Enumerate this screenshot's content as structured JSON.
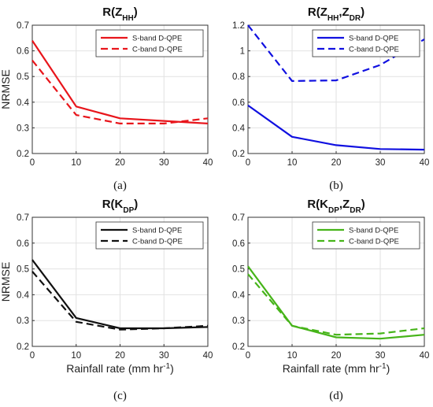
{
  "chart_data": [
    {
      "id": "a",
      "type": "line",
      "title_parts": [
        {
          "t": "R(Z"
        },
        {
          "t": "HH",
          "sub": true
        },
        {
          "t": ")"
        }
      ],
      "panel_label": "(a)",
      "ylabel": "NRMSE",
      "xlabel": "",
      "x": [
        0,
        10,
        20,
        30,
        40
      ],
      "xlim": [
        0,
        40
      ],
      "ylim": [
        0.2,
        0.7
      ],
      "xticks": [
        "0",
        "10",
        "20",
        "30",
        "40"
      ],
      "yticks": [
        "0.2",
        "0.3",
        "0.4",
        "0.5",
        "0.6",
        "0.7"
      ],
      "grid": true,
      "legend_position": "top-right",
      "series": [
        {
          "name": "S-band D-QPE",
          "color": "#e8151b",
          "dash": "solid",
          "values": [
            0.64,
            0.383,
            0.337,
            0.327,
            0.317
          ]
        },
        {
          "name": "C-band D-QPE",
          "color": "#e8151b",
          "dash": "dashed",
          "values": [
            0.563,
            0.35,
            0.317,
            0.317,
            0.337
          ]
        }
      ]
    },
    {
      "id": "b",
      "type": "line",
      "title_parts": [
        {
          "t": "R(Z"
        },
        {
          "t": "HH",
          "sub": true
        },
        {
          "t": ",Z"
        },
        {
          "t": "DR",
          "sub": true
        },
        {
          "t": ")"
        }
      ],
      "panel_label": "(b)",
      "ylabel": "",
      "xlabel": "",
      "x": [
        0,
        10,
        20,
        30,
        40
      ],
      "xlim": [
        0,
        40
      ],
      "ylim": [
        0.2,
        1.2
      ],
      "xticks": [
        "0",
        "10",
        "20",
        "30",
        "40"
      ],
      "yticks": [
        "0.2",
        "0.4",
        "0.6",
        "0.8",
        "1",
        "1.2"
      ],
      "grid": true,
      "legend_position": "top-right",
      "series": [
        {
          "name": "S-band D-QPE",
          "color": "#1010e0",
          "dash": "solid",
          "values": [
            0.575,
            0.33,
            0.265,
            0.235,
            0.23
          ]
        },
        {
          "name": "C-band D-QPE",
          "color": "#1010e0",
          "dash": "dashed",
          "values": [
            1.2,
            0.765,
            0.77,
            0.89,
            1.09
          ]
        }
      ]
    },
    {
      "id": "c",
      "type": "line",
      "title_parts": [
        {
          "t": "R(K"
        },
        {
          "t": "DP",
          "sub": true
        },
        {
          "t": ")"
        }
      ],
      "panel_label": "(c)",
      "ylabel": "NRMSE",
      "xlabel_parts": [
        {
          "t": "Rainfall rate (mm hr"
        },
        {
          "t": "-1",
          "sup": true
        },
        {
          "t": ")"
        }
      ],
      "x": [
        0,
        10,
        20,
        30,
        40
      ],
      "xlim": [
        0,
        40
      ],
      "ylim": [
        0.2,
        0.7
      ],
      "xticks": [
        "0",
        "10",
        "20",
        "30",
        "40"
      ],
      "yticks": [
        "0.2",
        "0.3",
        "0.4",
        "0.5",
        "0.6",
        "0.7"
      ],
      "grid": true,
      "legend_position": "top-right",
      "series": [
        {
          "name": "S-band D-QPE",
          "color": "#111111",
          "dash": "solid",
          "values": [
            0.535,
            0.31,
            0.27,
            0.27,
            0.275
          ]
        },
        {
          "name": "C-band D-QPE",
          "color": "#111111",
          "dash": "dashed",
          "values": [
            0.49,
            0.295,
            0.265,
            0.27,
            0.28
          ]
        }
      ]
    },
    {
      "id": "d",
      "type": "line",
      "title_parts": [
        {
          "t": "R(K"
        },
        {
          "t": "DP",
          "sub": true
        },
        {
          "t": ",Z"
        },
        {
          "t": "DR",
          "sub": true
        },
        {
          "t": ")"
        }
      ],
      "panel_label": "(d)",
      "ylabel": "",
      "xlabel_parts": [
        {
          "t": "Rainfall rate (mm hr"
        },
        {
          "t": "-1",
          "sup": true
        },
        {
          "t": ")"
        }
      ],
      "x": [
        0,
        10,
        20,
        30,
        40
      ],
      "xlim": [
        0,
        40
      ],
      "ylim": [
        0.2,
        0.7
      ],
      "xticks": [
        "0",
        "10",
        "20",
        "30",
        "40"
      ],
      "yticks": [
        "0.2",
        "0.3",
        "0.4",
        "0.5",
        "0.6",
        "0.7"
      ],
      "grid": true,
      "legend_position": "top-right",
      "series": [
        {
          "name": "S-band D-QPE",
          "color": "#46b419",
          "dash": "solid",
          "values": [
            0.51,
            0.28,
            0.235,
            0.23,
            0.245
          ]
        },
        {
          "name": "C-band D-QPE",
          "color": "#46b419",
          "dash": "dashed",
          "values": [
            0.48,
            0.28,
            0.245,
            0.25,
            0.27
          ]
        }
      ]
    }
  ]
}
